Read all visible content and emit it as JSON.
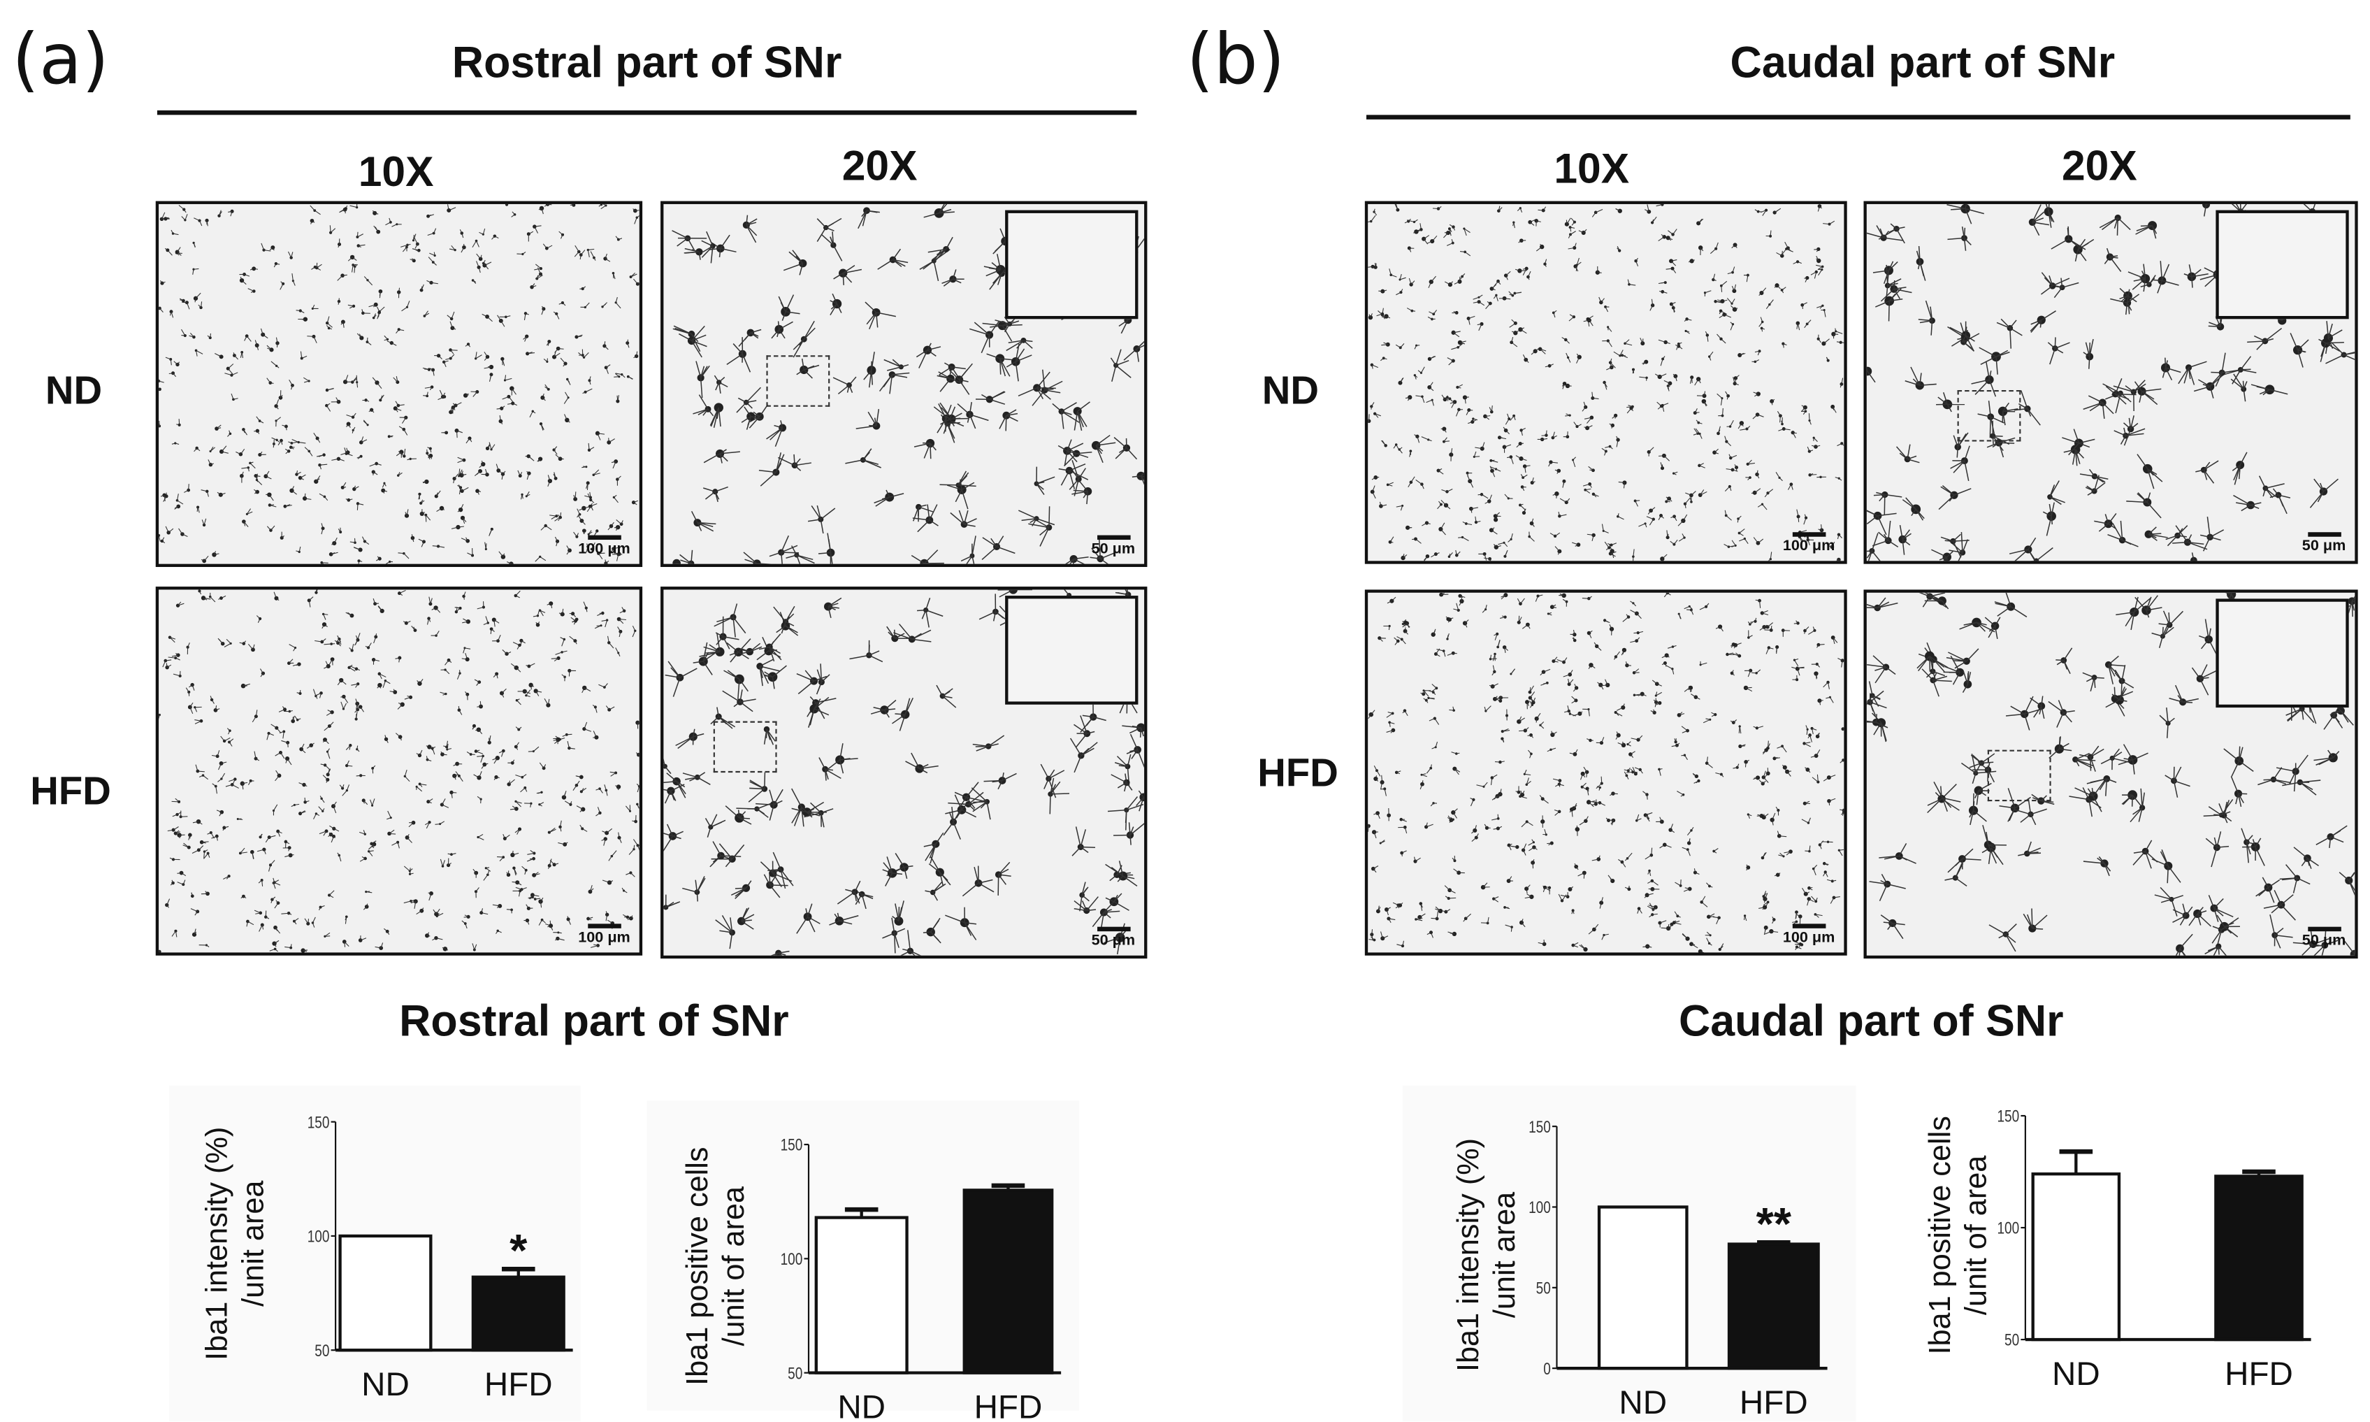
{
  "panels": [
    {
      "letter": "(a)",
      "title": "Rostral part of SNr",
      "mag_low": "10X",
      "mag_high": "20X",
      "row_labels": [
        "ND",
        "HFD"
      ],
      "scale_low": "100 μm",
      "scale_high": "50 μm",
      "chart_title": "Rostral part of SNr"
    },
    {
      "letter": "(b)",
      "title": "Caudal part of SNr",
      "mag_low": "10X",
      "mag_high": "20X",
      "row_labels": [
        "ND",
        "HFD"
      ],
      "scale_low": "100 μm",
      "scale_high": "50 μm",
      "chart_title": "Caudal part of SNr"
    }
  ],
  "chart_data": [
    {
      "type": "bar",
      "title": "Rostral part of SNr",
      "categories": [
        "ND",
        "HFD"
      ],
      "values": [
        100,
        82
      ],
      "errors": [
        0,
        3.5
      ],
      "colors": [
        "#ffffff",
        "#111111"
      ],
      "significance": [
        "",
        "*"
      ],
      "ylabel": [
        "Iba1 intensity (%)",
        "/unit area"
      ],
      "ylim": [
        50,
        150
      ],
      "yticks": [
        "50",
        "100",
        "150"
      ]
    },
    {
      "type": "bar",
      "title": "Rostral part of SNr",
      "categories": [
        "ND",
        "HFD"
      ],
      "values": [
        118,
        130
      ],
      "errors": [
        3.5,
        2
      ],
      "colors": [
        "#ffffff",
        "#111111"
      ],
      "significance": [
        "",
        ""
      ],
      "ylabel": [
        "Iba1 positive cells",
        "/unit of area"
      ],
      "ylim": [
        50,
        150
      ],
      "yticks": [
        "50",
        "100",
        "150"
      ]
    },
    {
      "type": "bar",
      "title": "Caudal part of SNr",
      "categories": [
        "ND",
        "HFD"
      ],
      "values": [
        100,
        77
      ],
      "errors": [
        0,
        1
      ],
      "colors": [
        "#ffffff",
        "#111111"
      ],
      "significance": [
        "",
        "**"
      ],
      "ylabel": [
        "Iba1 intensity (%)",
        "/unit area"
      ],
      "ylim": [
        0,
        150
      ],
      "yticks": [
        "0",
        "50",
        "100",
        "150"
      ]
    },
    {
      "type": "bar",
      "title": "Caudal part of SNr",
      "categories": [
        "ND",
        "HFD"
      ],
      "values": [
        124,
        123
      ],
      "errors": [
        10,
        2
      ],
      "colors": [
        "#ffffff",
        "#111111"
      ],
      "significance": [
        "",
        ""
      ],
      "ylabel": [
        "Iba1 positive cells",
        "/unit of area"
      ],
      "ylim": [
        50,
        150
      ],
      "yticks": [
        "50",
        "100",
        "150"
      ]
    }
  ]
}
